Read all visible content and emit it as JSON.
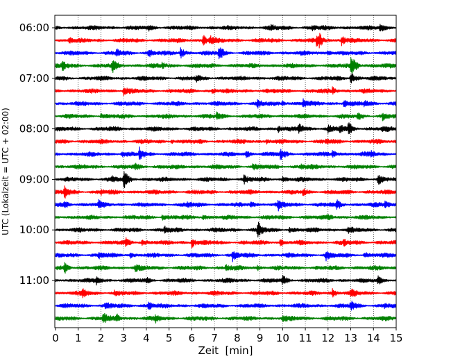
{
  "chart_data": {
    "type": "line",
    "title": "",
    "xlabel": "Zeit  [min]",
    "ylabel": "UTC (Lokalzeit = UTC + 02:00)",
    "xlim": [
      0,
      15
    ],
    "x_ticks": [
      "0",
      "1",
      "2",
      "3",
      "4",
      "5",
      "6",
      "7",
      "8",
      "9",
      "10",
      "11",
      "12",
      "13",
      "14",
      "15"
    ],
    "y_ticks": [
      "06:00",
      "07:00",
      "08:00",
      "09:00",
      "10:00",
      "11:00"
    ],
    "trace_interval_min": 15,
    "traces": [
      {
        "start": "06:00",
        "color": "#000000",
        "events": [
          [
            4.1,
            0.35
          ],
          [
            9.5,
            0.3
          ],
          [
            11.3,
            0.3
          ],
          [
            14.3,
            0.7
          ]
        ]
      },
      {
        "start": "06:15",
        "color": "#ff0000",
        "events": [
          [
            0.6,
            0.5
          ],
          [
            6.5,
            0.9
          ],
          [
            6.8,
            0.6
          ],
          [
            11.5,
            0.9
          ],
          [
            11.6,
            0.7
          ],
          [
            12.6,
            0.8
          ]
        ]
      },
      {
        "start": "06:30",
        "color": "#0000ff",
        "events": [
          [
            2.7,
            0.5
          ],
          [
            4.1,
            0.6
          ],
          [
            5.5,
            0.9
          ],
          [
            7.2,
            1.1
          ],
          [
            12.0,
            0.35
          ]
        ]
      },
      {
        "start": "06:45",
        "color": "#008000",
        "events": [
          [
            0.3,
            0.6
          ],
          [
            2.5,
            0.9
          ],
          [
            4.7,
            0.35
          ],
          [
            13.0,
            1.0
          ],
          [
            13.1,
            0.8
          ]
        ]
      },
      {
        "start": "07:00",
        "color": "#000000",
        "events": [
          [
            6.2,
            0.3
          ],
          [
            13.0,
            0.9
          ]
        ]
      },
      {
        "start": "07:15",
        "color": "#ff0000",
        "events": [
          [
            3.0,
            0.6
          ],
          [
            6.9,
            0.4
          ],
          [
            12.2,
            0.5
          ]
        ]
      },
      {
        "start": "07:30",
        "color": "#0000ff",
        "events": [
          [
            8.9,
            0.5
          ],
          [
            10.0,
            0.4
          ],
          [
            10.9,
            0.6
          ],
          [
            12.7,
            0.7
          ],
          [
            13.6,
            0.4
          ]
        ]
      },
      {
        "start": "07:45",
        "color": "#008000",
        "events": [
          [
            2.0,
            0.3
          ],
          [
            7.1,
            0.5
          ],
          [
            13.3,
            0.4
          ],
          [
            14.4,
            0.5
          ]
        ]
      },
      {
        "start": "08:00",
        "color": "#000000",
        "events": [
          [
            9.8,
            0.5
          ],
          [
            10.7,
            0.9
          ],
          [
            12.0,
            0.5
          ],
          [
            12.5,
            0.6
          ],
          [
            12.9,
            0.8
          ],
          [
            14.4,
            0.4
          ]
        ]
      },
      {
        "start": "08:15",
        "color": "#ff0000",
        "events": [
          [
            5.1,
            0.3
          ],
          [
            9.3,
            0.35
          ],
          [
            11.9,
            0.3
          ]
        ]
      },
      {
        "start": "08:30",
        "color": "#0000ff",
        "events": [
          [
            2.9,
            0.4
          ],
          [
            3.7,
            0.9
          ],
          [
            8.4,
            0.5
          ],
          [
            9.9,
            0.7
          ],
          [
            12.2,
            0.5
          ],
          [
            13.9,
            0.35
          ]
        ]
      },
      {
        "start": "08:45",
        "color": "#008000",
        "events": [
          [
            3.5,
            0.4
          ],
          [
            8.7,
            0.4
          ],
          [
            10.8,
            0.3
          ]
        ]
      },
      {
        "start": "09:00",
        "color": "#000000",
        "events": [
          [
            2.5,
            0.5
          ],
          [
            3.0,
            1.3
          ],
          [
            8.3,
            0.6
          ],
          [
            10.0,
            0.35
          ],
          [
            14.2,
            0.8
          ]
        ]
      },
      {
        "start": "09:15",
        "color": "#ff0000",
        "events": [
          [
            0.4,
            0.9
          ],
          [
            2.0,
            0.3
          ],
          [
            10.9,
            0.5
          ]
        ]
      },
      {
        "start": "09:30",
        "color": "#0000ff",
        "events": [
          [
            0.4,
            0.5
          ],
          [
            1.9,
            0.6
          ],
          [
            5.8,
            0.4
          ],
          [
            8.6,
            0.4
          ],
          [
            9.8,
            0.7
          ],
          [
            12.4,
            0.6
          ],
          [
            14.5,
            0.6
          ]
        ]
      },
      {
        "start": "09:45",
        "color": "#008000",
        "events": [
          [
            4.7,
            0.4
          ],
          [
            6.5,
            0.3
          ],
          [
            12.0,
            0.35
          ]
        ]
      },
      {
        "start": "10:00",
        "color": "#000000",
        "events": [
          [
            4.8,
            0.5
          ],
          [
            8.9,
            1.3
          ],
          [
            10.3,
            0.4
          ],
          [
            12.9,
            0.3
          ]
        ]
      },
      {
        "start": "10:15",
        "color": "#ff0000",
        "events": [
          [
            3.1,
            0.6
          ],
          [
            3.8,
            0.5
          ],
          [
            6.0,
            0.8
          ],
          [
            9.9,
            0.45
          ],
          [
            12.7,
            0.35
          ]
        ]
      },
      {
        "start": "10:30",
        "color": "#0000ff",
        "events": [
          [
            1.9,
            0.4
          ],
          [
            3.3,
            0.3
          ],
          [
            7.8,
            0.8
          ],
          [
            11.9,
            0.7
          ],
          [
            13.6,
            0.4
          ]
        ]
      },
      {
        "start": "10:45",
        "color": "#008000",
        "events": [
          [
            0.4,
            0.7
          ],
          [
            3.5,
            0.5
          ],
          [
            7.5,
            0.5
          ],
          [
            8.9,
            0.3
          ]
        ]
      },
      {
        "start": "11:00",
        "color": "#000000",
        "events": [
          [
            1.8,
            0.6
          ],
          [
            4.0,
            0.3
          ],
          [
            10.0,
            0.6
          ],
          [
            14.2,
            0.7
          ]
        ]
      },
      {
        "start": "11:15",
        "color": "#ff0000",
        "events": [
          [
            1.2,
            0.6
          ],
          [
            2.6,
            0.3
          ],
          [
            12.2,
            0.6
          ],
          [
            13.0,
            0.6
          ]
        ]
      },
      {
        "start": "11:30",
        "color": "#0000ff",
        "events": [
          [
            2.2,
            0.6
          ],
          [
            4.1,
            0.6
          ],
          [
            13.0,
            0.7
          ],
          [
            14.5,
            0.3
          ]
        ]
      },
      {
        "start": "11:45",
        "color": "#008000",
        "events": [
          [
            2.1,
            0.8
          ],
          [
            2.7,
            0.5
          ],
          [
            4.4,
            0.5
          ],
          [
            10.0,
            0.3
          ]
        ]
      }
    ],
    "grid": "vertical dotted",
    "legend": "none"
  }
}
